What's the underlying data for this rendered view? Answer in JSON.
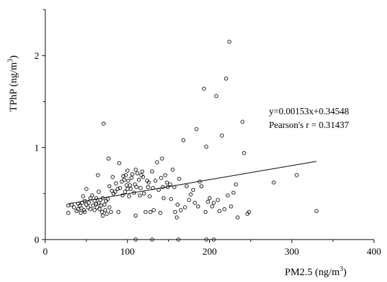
{
  "chart_data": {
    "type": "scatter",
    "xlabel": "PM2.5 (ng/m",
    "xlabel_sup": "3",
    "xlabel_end": ")",
    "ylabel": "TPhP (ng/m",
    "ylabel_sup": "3",
    "ylabel_end": ")",
    "xlim": [
      0,
      400
    ],
    "ylim": [
      0,
      2.5
    ],
    "xticks": [
      0,
      100,
      200,
      300,
      400
    ],
    "yticks": [
      0,
      1,
      2
    ],
    "xtick_labels": [
      "0",
      "100",
      "200",
      "300",
      "400"
    ],
    "ytick_labels": [
      "0",
      "1",
      "2"
    ],
    "grid": false,
    "annotations": {
      "equation": "y=0.00153x+0.34548",
      "pearson": "Pearson's r = 0.31437"
    },
    "fit_line": {
      "slope": 0.00153,
      "intercept": 0.34548,
      "x_range": [
        28,
        330
      ]
    },
    "points": [
      [
        28,
        0.29
      ],
      [
        28,
        0.37
      ],
      [
        32,
        0.38
      ],
      [
        35,
        0.35
      ],
      [
        38,
        0.31
      ],
      [
        40,
        0.39
      ],
      [
        40,
        0.33
      ],
      [
        42,
        0.37
      ],
      [
        43,
        0.29
      ],
      [
        44,
        0.34
      ],
      [
        45,
        0.4
      ],
      [
        46,
        0.47
      ],
      [
        47,
        0.32
      ],
      [
        48,
        0.42
      ],
      [
        48,
        0.3
      ],
      [
        50,
        0.55
      ],
      [
        50,
        0.38
      ],
      [
        52,
        0.35
      ],
      [
        53,
        0.4
      ],
      [
        55,
        0.33
      ],
      [
        55,
        0.45
      ],
      [
        57,
        0.48
      ],
      [
        58,
        0.37
      ],
      [
        60,
        0.42
      ],
      [
        60,
        0.32
      ],
      [
        62,
        0.39
      ],
      [
        62,
        0.45
      ],
      [
        63,
        0.35
      ],
      [
        64,
        0.7
      ],
      [
        65,
        0.52
      ],
      [
        65,
        0.4
      ],
      [
        66,
        0.33
      ],
      [
        67,
        0.43
      ],
      [
        68,
        0.37
      ],
      [
        69,
        0.3
      ],
      [
        70,
        0.45
      ],
      [
        70,
        0.26
      ],
      [
        71,
        1.26
      ],
      [
        72,
        0.38
      ],
      [
        73,
        0.32
      ],
      [
        74,
        0.42
      ],
      [
        75,
        0.28
      ],
      [
        76,
        0.44
      ],
      [
        77,
        0.88
      ],
      [
        78,
        0.35
      ],
      [
        78,
        0.58
      ],
      [
        80,
        0.3
      ],
      [
        81,
        0.53
      ],
      [
        82,
        0.68
      ],
      [
        83,
        0.5
      ],
      [
        85,
        0.52
      ],
      [
        86,
        0.61
      ],
      [
        88,
        0.55
      ],
      [
        89,
        0.3
      ],
      [
        90,
        0.83
      ],
      [
        91,
        0.56
      ],
      [
        93,
        0.63
      ],
      [
        94,
        0.48
      ],
      [
        95,
        0.69
      ],
      [
        96,
        0.65
      ],
      [
        97,
        0.52
      ],
      [
        98,
        0.7
      ],
      [
        99,
        0.59
      ],
      [
        100,
        0.55
      ],
      [
        100,
        0.75
      ],
      [
        101,
        0.64
      ],
      [
        102,
        0.47
      ],
      [
        103,
        0.59
      ],
      [
        104,
        0.55
      ],
      [
        105,
        0.67
      ],
      [
        106,
        0.71
      ],
      [
        108,
        0.51
      ],
      [
        109,
        0.6
      ],
      [
        110,
        0.76
      ],
      [
        110,
        0.26
      ],
      [
        111,
        0.57
      ],
      [
        112,
        0.72
      ],
      [
        114,
        0.65
      ],
      [
        115,
        0.48
      ],
      [
        116,
        0.56
      ],
      [
        117,
        0.7
      ],
      [
        118,
        0.74
      ],
      [
        119,
        0.68
      ],
      [
        120,
        0.5
      ],
      [
        122,
        0.3
      ],
      [
        124,
        0.64
      ],
      [
        125,
        0.57
      ],
      [
        126,
        0.62
      ],
      [
        127,
        0.47
      ],
      [
        128,
        0.3
      ],
      [
        130,
        0.74
      ],
      [
        131,
        0.56
      ],
      [
        132,
        0.32
      ],
      [
        134,
        0.64
      ],
      [
        136,
        0.84
      ],
      [
        138,
        0.54
      ],
      [
        140,
        0.29
      ],
      [
        141,
        0.67
      ],
      [
        142,
        0.88
      ],
      [
        143,
        0.57
      ],
      [
        144,
        0.45
      ],
      [
        146,
        0.7
      ],
      [
        148,
        0.62
      ],
      [
        149,
        0.57
      ],
      [
        152,
        0.6
      ],
      [
        153,
        0.44
      ],
      [
        155,
        0.76
      ],
      [
        157,
        0.57
      ],
      [
        158,
        0.3
      ],
      [
        160,
        0.24
      ],
      [
        161,
        0.38
      ],
      [
        163,
        0.66
      ],
      [
        165,
        0.32
      ],
      [
        168,
        1.08
      ],
      [
        170,
        0.35
      ],
      [
        172,
        0.58
      ],
      [
        175,
        0.43
      ],
      [
        177,
        0.49
      ],
      [
        180,
        0.54
      ],
      [
        182,
        0.4
      ],
      [
        184,
        1.2
      ],
      [
        186,
        0.36
      ],
      [
        188,
        0.63
      ],
      [
        190,
        0.58
      ],
      [
        193,
        1.64
      ],
      [
        195,
        0.3
      ],
      [
        196,
        1.01
      ],
      [
        198,
        0.41
      ],
      [
        200,
        0.45
      ],
      [
        203,
        0.36
      ],
      [
        205,
        0.4
      ],
      [
        208,
        1.56
      ],
      [
        210,
        0.43
      ],
      [
        212,
        0.31
      ],
      [
        215,
        1.13
      ],
      [
        218,
        0.33
      ],
      [
        220,
        1.75
      ],
      [
        222,
        0.48
      ],
      [
        224,
        2.15
      ],
      [
        226,
        0.36
      ],
      [
        229,
        0.51
      ],
      [
        232,
        0.6
      ],
      [
        234,
        0.24
      ],
      [
        240,
        1.28
      ],
      [
        242,
        0.94
      ],
      [
        246,
        0.28
      ],
      [
        248,
        0.3
      ],
      [
        278,
        0.62
      ],
      [
        306,
        0.7
      ],
      [
        330,
        0.31
      ],
      [
        110,
        0.0
      ],
      [
        130,
        0.0
      ],
      [
        162,
        0.0
      ],
      [
        196,
        0.0
      ],
      [
        205,
        0.0
      ]
    ]
  }
}
